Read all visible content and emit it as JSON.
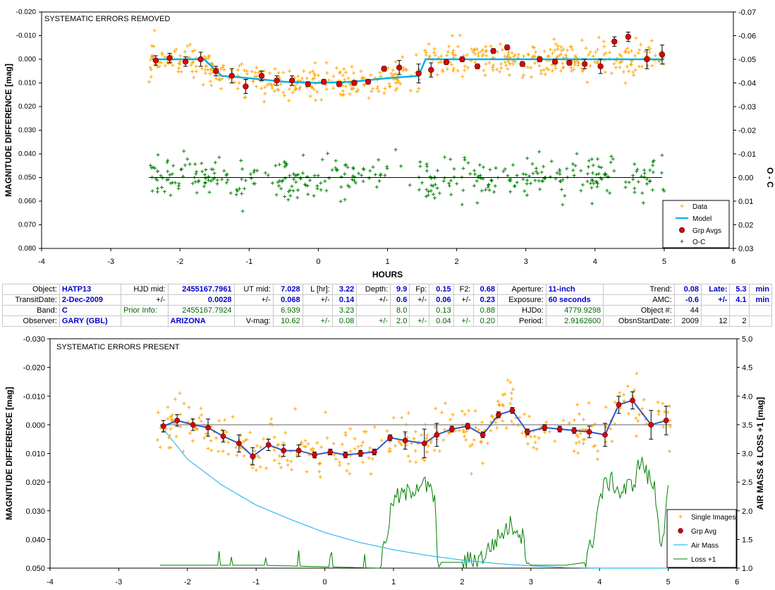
{
  "colors": {
    "data": "#ffa500",
    "model": "#00b0e8",
    "grp": "#e00000",
    "oc": "#008000",
    "air": "#33bbee",
    "loss": "#008000",
    "model2": "#3355cc"
  },
  "chart_data": [
    {
      "type": "scatter",
      "title": "SYSTEMATIC ERRORS REMOVED",
      "xlabel": "HOURS",
      "ylabel": "MAGNITUDE DIFFERENCE [mag]",
      "ylabel_right": "O - C",
      "xlim": [
        -4,
        6
      ],
      "ylim": [
        -0.02,
        0.08
      ],
      "ylim_right": [
        -0.07,
        0.03
      ],
      "xticks": [
        "-4",
        "-3",
        "-2",
        "-1",
        "0",
        "1",
        "2",
        "3",
        "4",
        "5",
        "6"
      ],
      "yticks": [
        "-0.020",
        "-0.010",
        "0.000",
        "0.010",
        "0.020",
        "0.030",
        "0.040",
        "0.050",
        "0.060",
        "0.070",
        "0.080"
      ],
      "yticks_right": [
        "-0.07",
        "-0.06",
        "-0.05",
        "-0.04",
        "-0.03",
        "-0.02",
        "-0.01",
        "0.00",
        "0.01",
        "0.02",
        "0.03"
      ],
      "legend": [
        "Data",
        "Model",
        "Grp Avgs",
        "O-C"
      ],
      "legend_position": "lower-right",
      "model": {
        "x": [
          -2.4,
          -1.65,
          -1.4,
          -1.0,
          -0.5,
          0.0,
          0.5,
          1.0,
          1.45,
          1.55,
          2.0,
          3.0,
          4.0,
          5.0
        ],
        "y": [
          0.0,
          0.0,
          0.007,
          0.008,
          0.0095,
          0.01,
          0.0095,
          0.008,
          0.007,
          0.0,
          0.0,
          0.0,
          0.0,
          0.0
        ]
      },
      "grp_avgs": {
        "x": [
          -2.35,
          -2.15,
          -1.92,
          -1.7,
          -1.48,
          -1.25,
          -1.05,
          -0.82,
          -0.6,
          -0.38,
          -0.15,
          0.08,
          0.3,
          0.52,
          0.72,
          0.95,
          1.17,
          1.45,
          1.63,
          1.85,
          2.08,
          2.3,
          2.53,
          2.73,
          2.95,
          3.2,
          3.42,
          3.63,
          3.85,
          4.08,
          4.28,
          4.48,
          4.75,
          4.97
        ],
        "y": [
          0.0005,
          -0.0005,
          0.001,
          0.0,
          0.005,
          0.007,
          0.0115,
          0.007,
          0.009,
          0.009,
          0.0105,
          0.0095,
          0.0105,
          0.01,
          0.0095,
          0.004,
          0.0035,
          0.006,
          0.0045,
          0.0012,
          0.0,
          0.003,
          -0.0035,
          -0.005,
          0.002,
          0.0,
          0.001,
          0.0015,
          0.002,
          0.003,
          -0.0075,
          -0.0095,
          0.0,
          -0.002
        ],
        "err": [
          0.002,
          0.002,
          0.002,
          0.003,
          0.002,
          0.003,
          0.003,
          0.002,
          0.002,
          0.002,
          0.001,
          0.001,
          0.001,
          0.001,
          0.001,
          0.001,
          0.003,
          0.004,
          0.003,
          0.001,
          0.001,
          0.001,
          0.001,
          0.001,
          0.001,
          0.001,
          0.001,
          0.001,
          0.002,
          0.003,
          0.002,
          0.002,
          0.004,
          0.004
        ]
      },
      "oc_zero": 0.0,
      "data_scatter": "approx. 600 orange + points scattered around model (~±0.006 mag); green + O-C points around 0.00 (±0.01 mag)"
    },
    {
      "type": "scatter",
      "title": "SYSTEMATIC ERRORS PRESENT",
      "xlabel": "",
      "ylabel": "MAGNITUDE DIFFERENCE [mag]",
      "ylabel_right": "AIR MASS & LOSS +1 [mag]",
      "xlim": [
        -4,
        6
      ],
      "ylim": [
        -0.03,
        0.05
      ],
      "ylim_right": [
        1.0,
        5.0
      ],
      "xticks": [
        "-4",
        "-3",
        "-2",
        "-1",
        "0",
        "1",
        "2",
        "3",
        "4",
        "5",
        "6"
      ],
      "yticks": [
        "-0.030",
        "-0.020",
        "-0.010",
        "0.000",
        "0.010",
        "0.020",
        "0.030",
        "0.040",
        "0.050"
      ],
      "yticks_right": [
        "1.0",
        "1.5",
        "2.0",
        "2.5",
        "3.0",
        "3.5",
        "4.0",
        "4.5",
        "5.0"
      ],
      "legend": [
        "Single Images",
        "Grp Avg",
        "Air Mass",
        "Loss +1"
      ],
      "legend_position": "lower-right",
      "grp_avg": {
        "x": [
          -2.35,
          -2.15,
          -1.92,
          -1.7,
          -1.48,
          -1.25,
          -1.05,
          -0.82,
          -0.6,
          -0.38,
          -0.15,
          0.08,
          0.3,
          0.52,
          0.72,
          0.95,
          1.17,
          1.45,
          1.63,
          1.85,
          2.08,
          2.3,
          2.53,
          2.73,
          2.95,
          3.2,
          3.42,
          3.63,
          3.85,
          4.08,
          4.28,
          4.48,
          4.75,
          4.97
        ],
        "y": [
          0.0005,
          -0.0015,
          0.0,
          0.001,
          0.004,
          0.0065,
          0.011,
          0.007,
          0.009,
          0.009,
          0.0105,
          0.0095,
          0.0105,
          0.01,
          0.0095,
          0.0045,
          0.0055,
          0.0065,
          0.0035,
          0.0015,
          0.0005,
          0.0035,
          -0.0035,
          -0.005,
          0.0025,
          0.001,
          0.0015,
          0.002,
          0.0025,
          0.0035,
          -0.007,
          -0.0085,
          0.0,
          -0.0015
        ],
        "err": [
          0.002,
          0.002,
          0.002,
          0.003,
          0.002,
          0.003,
          0.003,
          0.002,
          0.002,
          0.002,
          0.001,
          0.001,
          0.001,
          0.001,
          0.001,
          0.001,
          0.003,
          0.005,
          0.004,
          0.001,
          0.001,
          0.001,
          0.001,
          0.001,
          0.001,
          0.001,
          0.001,
          0.001,
          0.002,
          0.004,
          0.003,
          0.003,
          0.005,
          0.005
        ]
      },
      "air_mass": {
        "x": [
          -2.4,
          -2.0,
          -1.5,
          -1.0,
          -0.5,
          0.0,
          0.5,
          1.0,
          1.5,
          2.0,
          2.5,
          3.0,
          3.5,
          4.0,
          4.5,
          5.0
        ],
        "y": [
          3.5,
          2.9,
          2.45,
          2.1,
          1.85,
          1.62,
          1.45,
          1.32,
          1.22,
          1.14,
          1.08,
          1.04,
          1.01,
          1.0,
          1.0,
          1.0
        ]
      },
      "loss_plus_1": {
        "x": [
          -2.4,
          -0.9,
          0.8,
          0.9,
          1.0,
          1.2,
          1.4,
          1.5,
          1.6,
          1.65,
          1.7,
          2.0,
          2.3,
          2.5,
          2.7,
          2.8,
          2.9,
          2.95,
          3.0,
          3.5,
          3.8,
          3.9,
          4.0,
          4.1,
          4.2,
          4.3,
          4.5,
          4.6,
          4.7,
          4.8,
          4.9,
          5.0
        ],
        "y": [
          1.05,
          1.05,
          1.0,
          1.6,
          2.2,
          2.3,
          2.5,
          2.4,
          2.2,
          1.0,
          1.1,
          1.1,
          1.2,
          1.5,
          1.75,
          1.7,
          1.5,
          1.1,
          1.05,
          1.05,
          1.1,
          1.5,
          2.2,
          2.5,
          2.5,
          2.3,
          2.5,
          2.9,
          2.6,
          2.4,
          1.4,
          2.3
        ]
      },
      "data_scatter": "approx. 400 orange + single-image points around the grp-avg curve (~±0.008 mag)"
    }
  ],
  "info": {
    "rows": [
      [
        "Object:",
        "HATP13",
        "HJD mid:",
        "2455167.7961",
        "UT mid:",
        "7.028",
        "L [hr]:",
        "3.22",
        "Depth:",
        "9.9",
        "Fp:",
        "0.15",
        "F2:",
        "0.68",
        "Aperture:",
        "11-inch",
        "Trend:",
        "0.08",
        "Late:",
        "5.3",
        "min"
      ],
      [
        "TransitDate:",
        "2-Dec-2009",
        "+/-",
        "0.0028",
        "+/-",
        "0.068",
        "+/-",
        "0.14",
        "+/-",
        "0.6",
        "+/-",
        "0.06",
        "+/-",
        "0.23",
        "Exposure:",
        "60 seconds",
        "AMC:",
        "-0.6",
        "+/-",
        "4.1",
        "min"
      ],
      [
        "Band:",
        "C",
        "Prior Info:",
        "2455167.7924",
        "",
        "6.939",
        "",
        "3.23",
        "",
        "8.0",
        "",
        "0.13",
        "",
        "0.88",
        "HJDo:",
        "4779.9298",
        "Object #:",
        "44",
        "",
        "",
        ""
      ],
      [
        "Observer:",
        "GARY (GBL)",
        "",
        "ARIZONA",
        "V-mag:",
        "10.62",
        "+/-",
        "0.08",
        "+/-",
        "2.0",
        "+/-",
        "0.04",
        "+/-",
        "0.20",
        "Period:",
        "2.9162600",
        "ObsnStartDate:",
        "2009",
        "12",
        "2",
        ""
      ]
    ]
  }
}
